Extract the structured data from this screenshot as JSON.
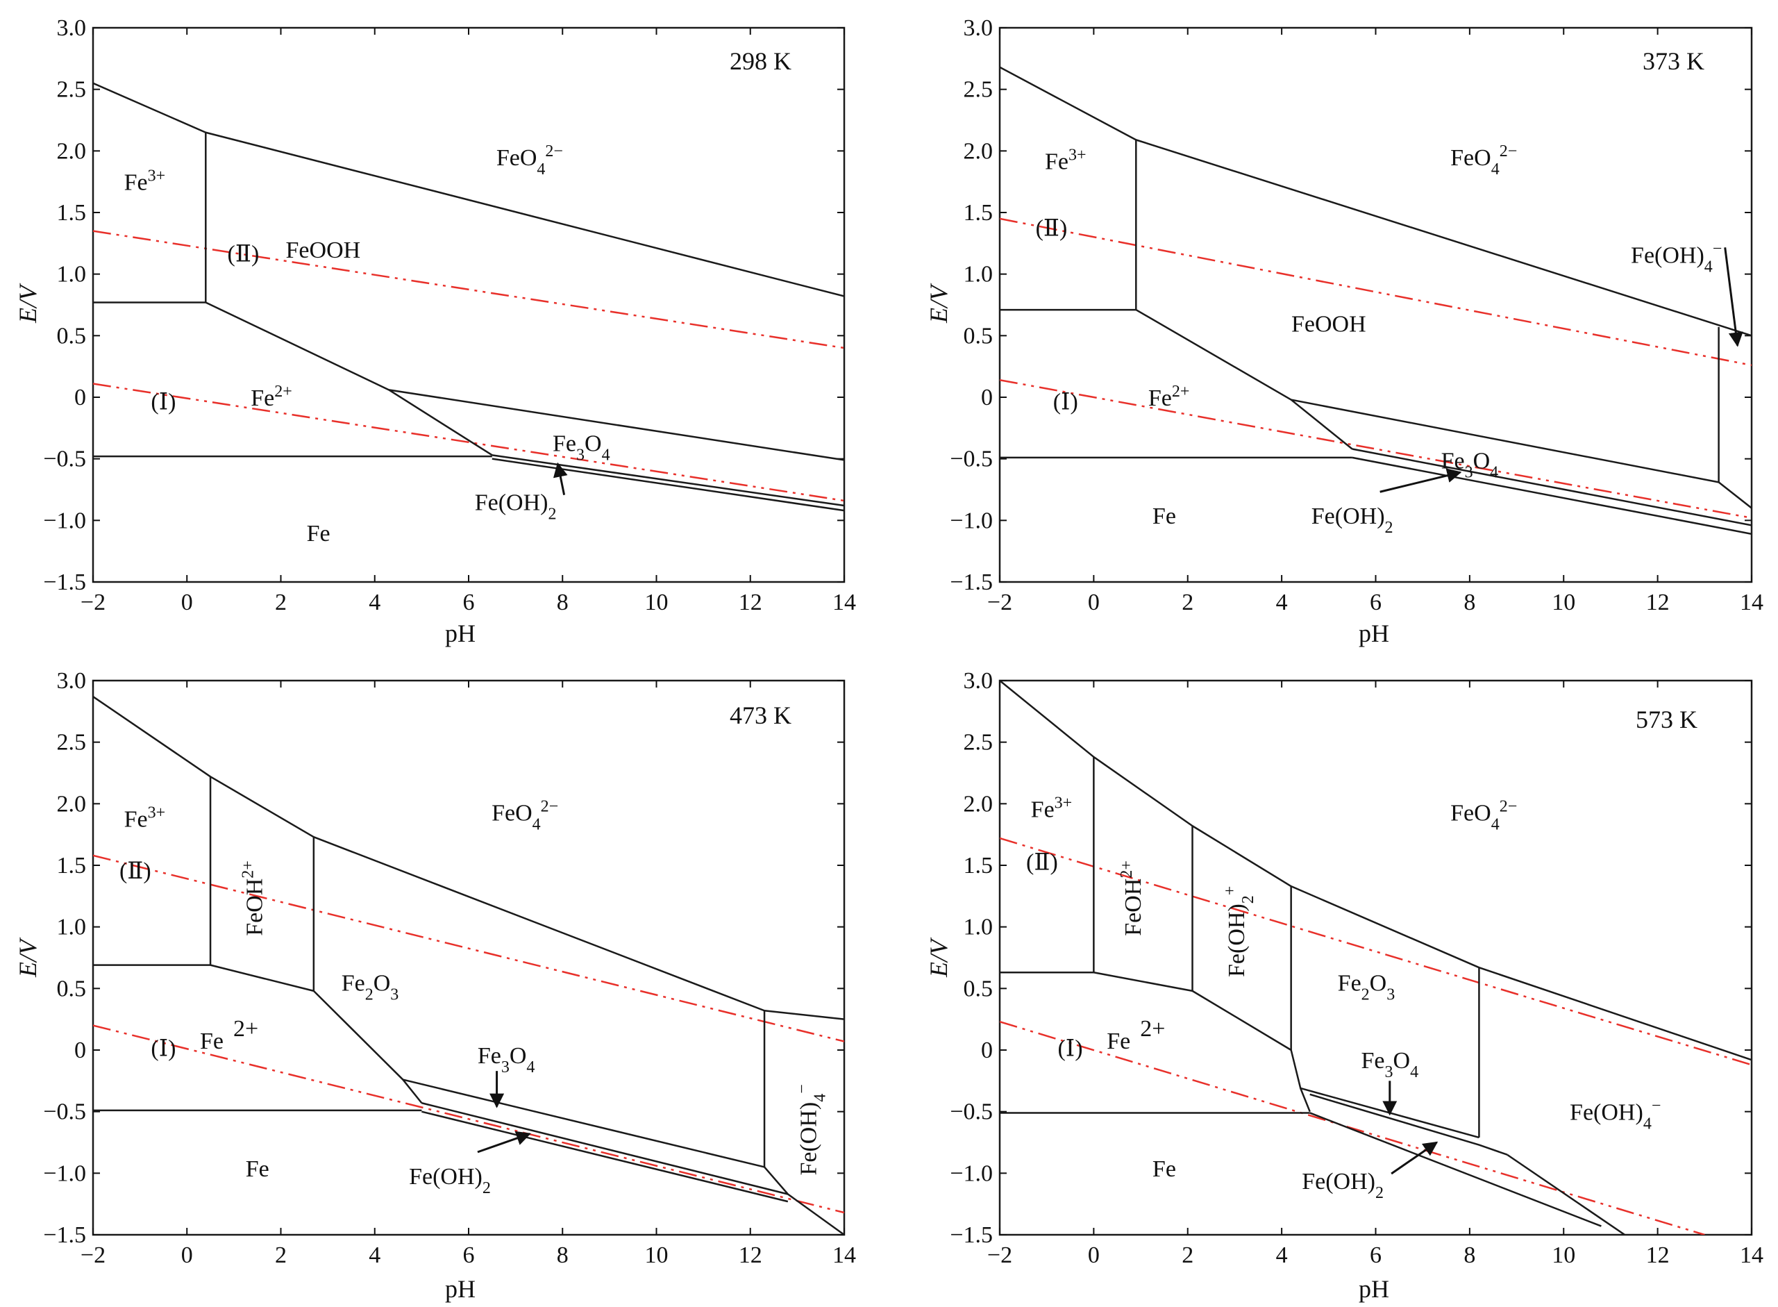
{
  "figure": {
    "xlabel": "pH",
    "ylabel": "E/V",
    "xlim": [
      -2,
      14
    ],
    "ylim": [
      -1.5,
      3.0
    ],
    "xticks": [
      -2,
      0,
      2,
      4,
      6,
      8,
      10,
      12,
      14
    ],
    "yticks": [
      -1.5,
      -1.0,
      -0.5,
      0,
      0.5,
      1.0,
      1.5,
      2.0,
      2.5,
      3.0
    ],
    "ytick_labels": [
      "−1.5",
      "−1.0",
      "−0.5",
      "0",
      "0.5",
      "1.0",
      "1.5",
      "2.0",
      "2.5",
      "3.0"
    ],
    "xtick_labels": [
      "−2",
      "0",
      "2",
      "4",
      "6",
      "8",
      "10",
      "12",
      "14"
    ],
    "boundary_color": "#1a1a1a",
    "water_line_color": "#e8302a"
  },
  "chart_data": [
    {
      "type": "line",
      "title": "298 K",
      "xlabel": "pH",
      "ylabel": "E/V",
      "xlim": [
        -2,
        14
      ],
      "ylim": [
        -1.5,
        3.0
      ],
      "boundaries": [
        {
          "x": [
            -2,
            0.4,
            14
          ],
          "y": [
            2.55,
            2.15,
            0.82
          ]
        },
        {
          "x": [
            0.4,
            0.4
          ],
          "y": [
            2.15,
            0.77
          ]
        },
        {
          "x": [
            -2,
            0.4
          ],
          "y": [
            0.77,
            0.77
          ]
        },
        {
          "x": [
            0.4,
            4.3,
            6.5
          ],
          "y": [
            0.77,
            0.06,
            -0.47
          ]
        },
        {
          "x": [
            4.3,
            14
          ],
          "y": [
            0.06,
            -0.51
          ]
        },
        {
          "x": [
            -2,
            6.5
          ],
          "y": [
            -0.48,
            -0.48
          ]
        },
        {
          "x": [
            6.5,
            14
          ],
          "y": [
            -0.47,
            -0.88
          ]
        },
        {
          "x": [
            6.5,
            14
          ],
          "y": [
            -0.5,
            -0.92
          ]
        }
      ],
      "water_lines": [
        {
          "name": "(Ⅱ)",
          "x": [
            -2,
            14
          ],
          "y": [
            1.35,
            0.4
          ]
        },
        {
          "name": "(Ⅰ)",
          "x": [
            -2,
            14
          ],
          "y": [
            0.11,
            -0.84
          ]
        }
      ],
      "regions": [
        {
          "label": "Fe",
          "sup": "3+",
          "x": -0.9,
          "y": 1.75
        },
        {
          "label": "FeOOH",
          "x": 2.9,
          "y": 1.2
        },
        {
          "label": "FeO",
          "sub": "4",
          "sup": "2−",
          "x": 7.3,
          "y": 1.95
        },
        {
          "label": "Fe",
          "sup": "2+",
          "x": 1.8,
          "y": 0.0
        },
        {
          "label": "Fe",
          "sub": "3",
          "label2": "O",
          "sub2": "4",
          "x": 8.4,
          "y": -0.37
        },
        {
          "label": "Fe",
          "x": 2.8,
          "y": -1.1
        },
        {
          "label": "(Ⅱ)",
          "x": 1.2,
          "y": 1.17
        },
        {
          "label": "(Ⅰ)",
          "x": -0.5,
          "y": -0.03
        }
      ],
      "arrows": [
        {
          "label": "Fe(OH)",
          "sub": "2",
          "label_xy": [
            7.0,
            -0.85
          ],
          "tip_xy": [
            7.9,
            -0.54
          ]
        }
      ]
    },
    {
      "type": "line",
      "title": "373 K",
      "xlabel": "pH",
      "ylabel": "E/V",
      "xlim": [
        -2,
        14
      ],
      "ylim": [
        -1.5,
        3.0
      ],
      "boundaries": [
        {
          "x": [
            -2,
            0.9,
            14
          ],
          "y": [
            2.68,
            2.09,
            0.5
          ]
        },
        {
          "x": [
            0.9,
            0.9
          ],
          "y": [
            2.09,
            0.71
          ]
        },
        {
          "x": [
            -2,
            0.9
          ],
          "y": [
            0.71,
            0.71
          ]
        },
        {
          "x": [
            0.9,
            4.2,
            5.5
          ],
          "y": [
            0.71,
            -0.02,
            -0.42
          ]
        },
        {
          "x": [
            4.2,
            13.3,
            14
          ],
          "y": [
            -0.02,
            -0.69,
            -0.9
          ]
        },
        {
          "x": [
            -2,
            5.5
          ],
          "y": [
            -0.49,
            -0.49
          ]
        },
        {
          "x": [
            5.5,
            14
          ],
          "y": [
            -0.42,
            -1.04
          ]
        },
        {
          "x": [
            5.5,
            14
          ],
          "y": [
            -0.49,
            -1.11
          ]
        },
        {
          "x": [
            13.3,
            13.3
          ],
          "y": [
            0.57,
            -0.69
          ]
        }
      ],
      "water_lines": [
        {
          "name": "(Ⅱ)",
          "x": [
            -2,
            14
          ],
          "y": [
            1.45,
            0.26
          ]
        },
        {
          "name": "(Ⅰ)",
          "x": [
            -2,
            14
          ],
          "y": [
            0.14,
            -0.98
          ]
        }
      ],
      "regions": [
        {
          "label": "Fe",
          "sup": "3+",
          "x": -0.6,
          "y": 1.92
        },
        {
          "label": "FeOOH",
          "x": 5.0,
          "y": 0.6
        },
        {
          "label": "FeO",
          "sub": "4",
          "sup": "2−",
          "x": 8.3,
          "y": 1.95
        },
        {
          "label": "Fe",
          "sup": "2+",
          "x": 1.6,
          "y": 0.0
        },
        {
          "label": "Fe",
          "sub": "3",
          "label2": "O",
          "sub2": "4",
          "x": 8.0,
          "y": -0.51
        },
        {
          "label": "Fe",
          "x": 1.5,
          "y": -0.96
        },
        {
          "label": "(Ⅱ)",
          "x": -0.9,
          "y": 1.38
        },
        {
          "label": "(Ⅰ)",
          "x": -0.6,
          "y": -0.03
        }
      ],
      "arrows": [
        {
          "label": "Fe(OH)",
          "sub": "2",
          "label_xy": [
            5.5,
            -0.96
          ],
          "tip_xy": [
            7.8,
            -0.61
          ]
        },
        {
          "label": "Fe(OH)",
          "sub": "4",
          "sup": "−",
          "label_xy": [
            12.4,
            1.16
          ],
          "tip_xy": [
            13.7,
            0.42
          ]
        }
      ]
    },
    {
      "type": "line",
      "title": "473 K",
      "xlabel": "pH",
      "ylabel": "E/V",
      "xlim": [
        -2,
        14
      ],
      "ylim": [
        -1.5,
        3.0
      ],
      "boundaries": [
        {
          "x": [
            -2,
            0.5,
            2.7,
            12.3,
            14
          ],
          "y": [
            2.87,
            2.22,
            1.73,
            0.32,
            0.25
          ]
        },
        {
          "x": [
            0.5,
            0.5
          ],
          "y": [
            2.22,
            0.69
          ]
        },
        {
          "x": [
            2.7,
            2.7
          ],
          "y": [
            1.73,
            0.48
          ]
        },
        {
          "x": [
            -2,
            0.5,
            2.7
          ],
          "y": [
            0.69,
            0.69,
            0.48
          ]
        },
        {
          "x": [
            2.7,
            4.6,
            5.0
          ],
          "y": [
            0.48,
            -0.24,
            -0.43
          ]
        },
        {
          "x": [
            4.6,
            12.3
          ],
          "y": [
            -0.24,
            -0.95
          ]
        },
        {
          "x": [
            -2,
            5.0
          ],
          "y": [
            -0.49,
            -0.49
          ]
        },
        {
          "x": [
            5.0,
            12.8
          ],
          "y": [
            -0.43,
            -1.17
          ]
        },
        {
          "x": [
            5.0,
            12.8
          ],
          "y": [
            -0.5,
            -1.23
          ]
        },
        {
          "x": [
            12.3,
            12.3
          ],
          "y": [
            0.32,
            -0.95
          ]
        },
        {
          "x": [
            12.3,
            12.8,
            14
          ],
          "y": [
            -0.95,
            -1.17,
            -1.5
          ]
        }
      ],
      "water_lines": [
        {
          "name": "(Ⅱ)",
          "x": [
            -2,
            14
          ],
          "y": [
            1.58,
            0.07
          ]
        },
        {
          "name": "(Ⅰ)",
          "x": [
            -2,
            14
          ],
          "y": [
            0.2,
            -1.32
          ]
        }
      ],
      "regions": [
        {
          "label": "Fe",
          "sup": "3+",
          "x": -0.9,
          "y": 1.88
        },
        {
          "label": "FeOH",
          "sup": "2+",
          "x": 1.6,
          "y": 1.3,
          "vertical": true
        },
        {
          "label": "Fe",
          "sub": "2",
          "label2": "O",
          "sub2": "3",
          "x": 3.9,
          "y": 0.55
        },
        {
          "label": "FeO",
          "sub": "4",
          "sup": "2−",
          "x": 7.2,
          "y": 1.93
        },
        {
          "label": "Fe",
          "sup": "2+",
          "x": 0.9,
          "y": 0.08,
          "spaced": true
        },
        {
          "label": "Fe",
          "sub": "3",
          "label2": "O",
          "sub2": "4",
          "x": 6.8,
          "y": -0.04
        },
        {
          "label": "Fe(OH)",
          "sub": "4",
          "sup": "−",
          "x": 13.4,
          "y": -0.58,
          "vertical": true
        },
        {
          "label": "Fe",
          "x": 1.5,
          "y": -0.96
        },
        {
          "label": "(Ⅱ)",
          "x": -1.1,
          "y": 1.46
        },
        {
          "label": "(Ⅰ)",
          "x": -0.5,
          "y": 0.02
        }
      ],
      "arrows": [
        {
          "label": "Fe(OH)",
          "sub": "2",
          "label_xy": [
            5.6,
            -1.02
          ],
          "tip_xy": [
            7.3,
            -0.68
          ]
        },
        {
          "label": "",
          "label_xy": [
            6.6,
            -0.17
          ],
          "tip_xy": [
            6.6,
            -0.46
          ]
        }
      ]
    },
    {
      "type": "line",
      "title": "573 K",
      "xlabel": "pH",
      "ylabel": "E/V",
      "xlim": [
        -2,
        14
      ],
      "ylim": [
        -1.5,
        3.0
      ],
      "boundaries": [
        {
          "x": [
            -2,
            0.0,
            2.1,
            4.2,
            8.2,
            14
          ],
          "y": [
            3.0,
            2.38,
            1.82,
            1.33,
            0.67,
            -0.08
          ]
        },
        {
          "x": [
            0.0,
            0.0
          ],
          "y": [
            2.38,
            0.63
          ]
        },
        {
          "x": [
            2.1,
            2.1
          ],
          "y": [
            1.82,
            0.48
          ]
        },
        {
          "x": [
            4.2,
            4.2
          ],
          "y": [
            1.33,
            0.0
          ]
        },
        {
          "x": [
            8.2,
            8.2
          ],
          "y": [
            0.67,
            -0.71
          ]
        },
        {
          "x": [
            -2,
            0.0,
            2.1
          ],
          "y": [
            0.63,
            0.63,
            0.48
          ]
        },
        {
          "x": [
            2.1,
            4.2,
            4.4,
            4.6
          ],
          "y": [
            0.48,
            0.0,
            -0.31,
            -0.5
          ]
        },
        {
          "x": [
            4.4,
            8.2
          ],
          "y": [
            -0.31,
            -0.71
          ]
        },
        {
          "x": [
            -2,
            4.6
          ],
          "y": [
            -0.51,
            -0.51
          ]
        },
        {
          "x": [
            4.6,
            8.2,
            8.8
          ],
          "y": [
            -0.36,
            -0.77,
            -0.85
          ]
        },
        {
          "x": [
            4.6,
            10.8
          ],
          "y": [
            -0.51,
            -1.43
          ]
        },
        {
          "x": [
            8.8,
            11.3
          ],
          "y": [
            -0.85,
            -1.5
          ]
        }
      ],
      "water_lines": [
        {
          "name": "(Ⅱ)",
          "x": [
            -2,
            14
          ],
          "y": [
            1.72,
            -0.12
          ]
        },
        {
          "name": "(Ⅰ)",
          "x": [
            -2,
            13
          ],
          "y": [
            0.23,
            -1.5
          ]
        }
      ],
      "regions": [
        {
          "label": "Fe",
          "sup": "3+",
          "x": -0.9,
          "y": 1.96
        },
        {
          "label": "FeOH",
          "sup": "2+",
          "x": 1.0,
          "y": 1.3,
          "vertical": true
        },
        {
          "label": "Fe(OH)",
          "sub": "2",
          "sup": "+",
          "x": 3.2,
          "y": 1.03,
          "vertical": true
        },
        {
          "label": "Fe",
          "sub": "2",
          "label2": "O",
          "sub2": "3",
          "x": 5.8,
          "y": 0.55
        },
        {
          "label": "FeO",
          "sub": "4",
          "sup": "2−",
          "x": 8.3,
          "y": 1.93
        },
        {
          "label": "Fe",
          "sup": "2+",
          "x": 0.9,
          "y": 0.08,
          "spaced": true
        },
        {
          "label": "Fe",
          "sub": "3",
          "label2": "O",
          "sub2": "4",
          "x": 6.3,
          "y": -0.08
        },
        {
          "label": "Fe(OH)",
          "sub": "4",
          "sup": "−",
          "x": 11.1,
          "y": -0.5
        },
        {
          "label": "Fe",
          "x": 1.5,
          "y": -0.96
        },
        {
          "label": "(Ⅱ)",
          "x": -1.1,
          "y": 1.53
        },
        {
          "label": "(Ⅰ)",
          "x": -0.5,
          "y": 0.02
        }
      ],
      "arrows": [
        {
          "label": "Fe(OH)",
          "sub": "2",
          "label_xy": [
            5.3,
            -1.06
          ],
          "tip_xy": [
            7.3,
            -0.75
          ]
        },
        {
          "label": "",
          "label_xy": [
            6.3,
            -0.25
          ],
          "tip_xy": [
            6.3,
            -0.52
          ]
        }
      ]
    }
  ]
}
